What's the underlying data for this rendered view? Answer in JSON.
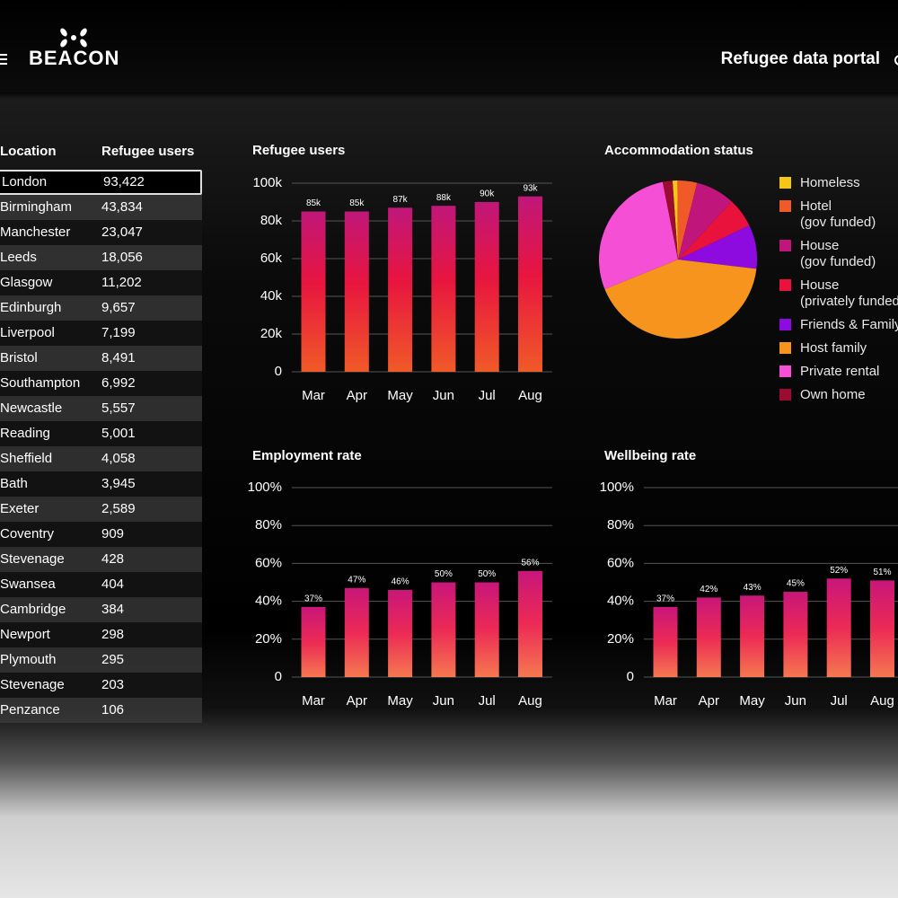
{
  "header": {
    "logo": "BEACON",
    "title": "Refugee data portal"
  },
  "table": {
    "columns": [
      "Location",
      "Refugee users"
    ],
    "rows": [
      [
        "London",
        "93,422"
      ],
      [
        "Birmingham",
        "43,834"
      ],
      [
        "Manchester",
        "23,047"
      ],
      [
        "Leeds",
        "18,056"
      ],
      [
        "Glasgow",
        "11,202"
      ],
      [
        "Edinburgh",
        "9,657"
      ],
      [
        "Liverpool",
        "7,199"
      ],
      [
        "Bristol",
        "8,491"
      ],
      [
        "Southampton",
        "6,992"
      ],
      [
        "Newcastle",
        "5,557"
      ],
      [
        "Reading",
        "5,001"
      ],
      [
        "Sheffield",
        "4,058"
      ],
      [
        "Bath",
        "3,945"
      ],
      [
        "Exeter",
        "2,589"
      ],
      [
        "Coventry",
        "909"
      ],
      [
        "Stevenage",
        "428"
      ],
      [
        "Swansea",
        "404"
      ],
      [
        "Cambridge",
        "384"
      ],
      [
        "Newport",
        "298"
      ],
      [
        "Plymouth",
        "295"
      ],
      [
        "Stevenage",
        "203"
      ],
      [
        "Penzance",
        "106"
      ]
    ]
  },
  "chart_data": [
    {
      "type": "bar",
      "title": "Refugee users",
      "categories": [
        "Mar",
        "Apr",
        "May",
        "Jun",
        "Jul",
        "Aug"
      ],
      "values": [
        85000,
        85000,
        87000,
        88000,
        90000,
        93000
      ],
      "value_labels": [
        "85k",
        "85k",
        "87k",
        "88k",
        "90k",
        "93k"
      ],
      "ylim": [
        0,
        100000
      ],
      "yticks": [
        0,
        {
          "value": 20000,
          "label": "20k"
        },
        {
          "value": 40000,
          "label": "40k"
        },
        {
          "value": 60000,
          "label": "60k"
        },
        {
          "value": 80000,
          "label": "80k"
        },
        {
          "value": 100000,
          "label": "100k"
        }
      ],
      "grid": true
    },
    {
      "type": "pie",
      "title": "Accommodation status",
      "categories": [
        "Homeless",
        "Hotel\n(gov funded)",
        "House\n(gov funded)",
        "House\n(privately funded)",
        "Friends & Family",
        "Host family",
        "Private rental",
        "Own home"
      ],
      "values": [
        1,
        4,
        8,
        6,
        9,
        42,
        28,
        2
      ],
      "colors": [
        "#f5c518",
        "#f05a28",
        "#c0157a",
        "#e8123c",
        "#8e0be0",
        "#f7941d",
        "#f54fd6",
        "#9b0c30"
      ]
    },
    {
      "type": "bar",
      "title": "Employment rate",
      "categories": [
        "Mar",
        "Apr",
        "May",
        "Jun",
        "Jul",
        "Aug"
      ],
      "values": [
        37,
        47,
        46,
        50,
        50,
        56
      ],
      "value_labels": [
        "37%",
        "47%",
        "46%",
        "50%",
        "50%",
        "56%"
      ],
      "ylim": [
        0,
        100
      ],
      "yticks": [
        0,
        {
          "value": 20,
          "label": "20%"
        },
        {
          "value": 40,
          "label": "40%"
        },
        {
          "value": 60,
          "label": "60%"
        },
        {
          "value": 80,
          "label": "80%"
        },
        {
          "value": 100,
          "label": "100%"
        }
      ],
      "grid": true
    },
    {
      "type": "bar",
      "title": "Wellbeing rate",
      "categories": [
        "Mar",
        "Apr",
        "May",
        "Jun",
        "Jul",
        "Aug"
      ],
      "values": [
        37,
        42,
        43,
        45,
        52,
        51
      ],
      "value_labels": [
        "37%",
        "42%",
        "43%",
        "45%",
        "52%",
        "51%"
      ],
      "ylim": [
        0,
        100
      ],
      "yticks": [
        0,
        {
          "value": 20,
          "label": "20%"
        },
        {
          "value": 40,
          "label": "40%"
        },
        {
          "value": 60,
          "label": "60%"
        },
        {
          "value": 80,
          "label": "80%"
        },
        {
          "value": 100,
          "label": "100%"
        }
      ],
      "grid": true
    }
  ]
}
